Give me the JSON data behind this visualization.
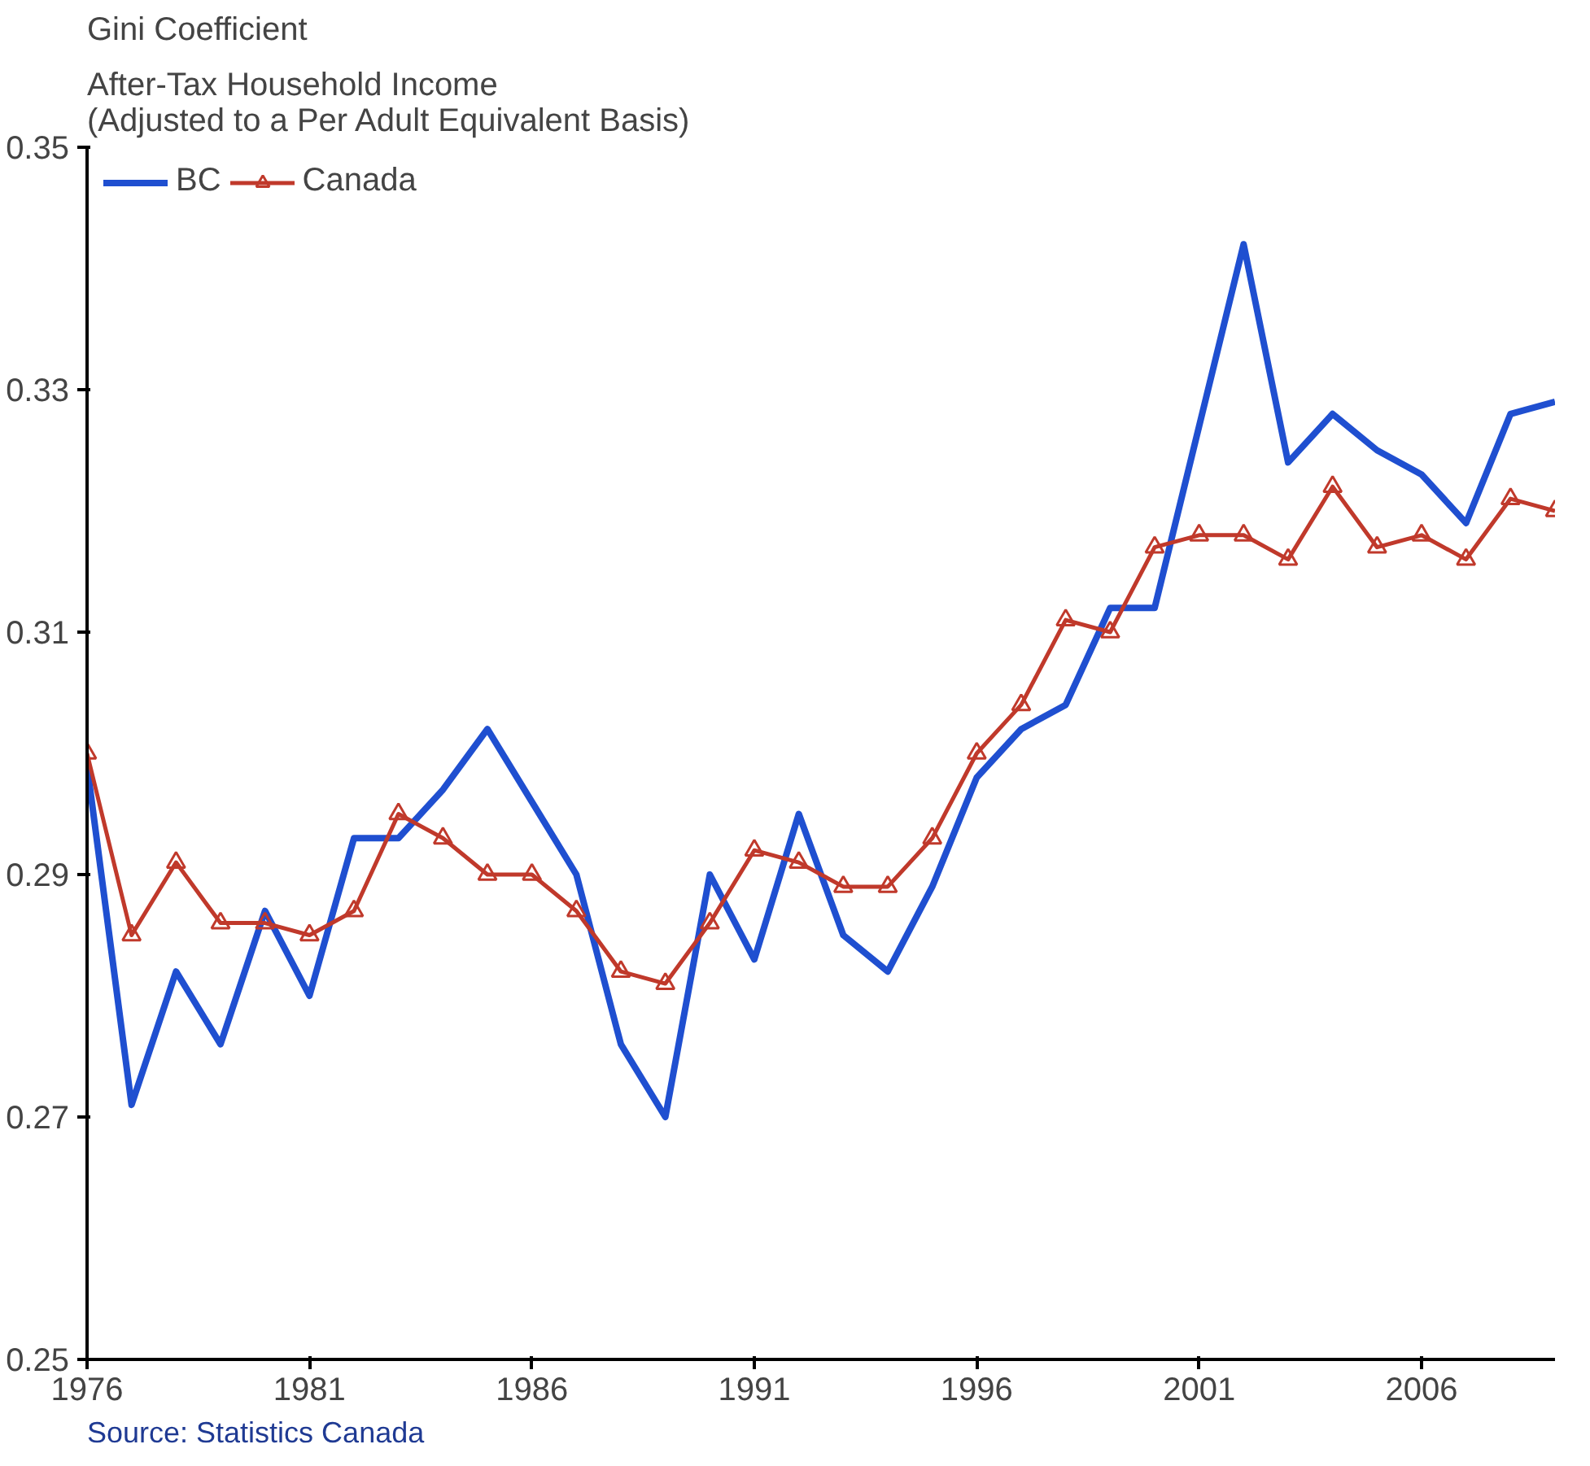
{
  "chart_data": {
    "type": "line",
    "title": "Gini Coefficient",
    "subtitle": "After-Tax Household Income\n(Adjusted to a Per Adult Equivalent Basis)",
    "x": [
      1976,
      1977,
      1978,
      1979,
      1980,
      1981,
      1982,
      1983,
      1984,
      1985,
      1986,
      1987,
      1988,
      1989,
      1990,
      1991,
      1992,
      1993,
      1994,
      1995,
      1996,
      1997,
      1998,
      1999,
      2000,
      2001,
      2002,
      2003,
      2004,
      2005,
      2006,
      2007,
      2008,
      2009
    ],
    "series": [
      {
        "name": "BC",
        "color": "#1f4fd0",
        "marker": "none",
        "values": [
          0.299,
          0.271,
          0.282,
          0.276,
          0.287,
          0.28,
          0.293,
          0.293,
          0.297,
          0.302,
          0.296,
          0.29,
          0.276,
          0.27,
          0.29,
          0.283,
          0.295,
          0.285,
          0.282,
          0.289,
          0.298,
          0.302,
          0.304,
          0.312,
          0.312,
          0.327,
          0.342,
          0.324,
          0.328,
          0.325,
          0.323,
          0.319,
          0.328,
          0.329
        ]
      },
      {
        "name": "Canada",
        "color": "#c0392b",
        "marker": "triangle",
        "values": [
          0.3,
          0.285,
          0.291,
          0.286,
          0.286,
          0.285,
          0.287,
          0.295,
          0.293,
          0.29,
          0.29,
          0.287,
          0.282,
          0.281,
          0.286,
          0.292,
          0.291,
          0.289,
          0.289,
          0.293,
          0.3,
          0.304,
          0.311,
          0.31,
          0.317,
          0.318,
          0.318,
          0.316,
          0.322,
          0.317,
          0.318,
          0.316,
          0.321,
          0.32
        ]
      }
    ],
    "xlim": [
      1976,
      2009
    ],
    "xticks": [
      1976,
      1981,
      1986,
      1991,
      1996,
      2001,
      2006
    ],
    "ylim": [
      0.25,
      0.35
    ],
    "yticks": [
      {
        "value": 0.25,
        "label": "0.25"
      },
      {
        "value": 0.27,
        "label": "0.27"
      },
      {
        "value": 0.29,
        "label": "0.29"
      },
      {
        "value": 0.31,
        "label": "0.31"
      },
      {
        "value": 0.33,
        "label": "0.33"
      },
      {
        "value": 0.35,
        "label": "0.35"
      }
    ],
    "grid": false,
    "legend": "top left",
    "line_style": "solid",
    "annotations": [
      "Source: Statistics Canada"
    ]
  }
}
